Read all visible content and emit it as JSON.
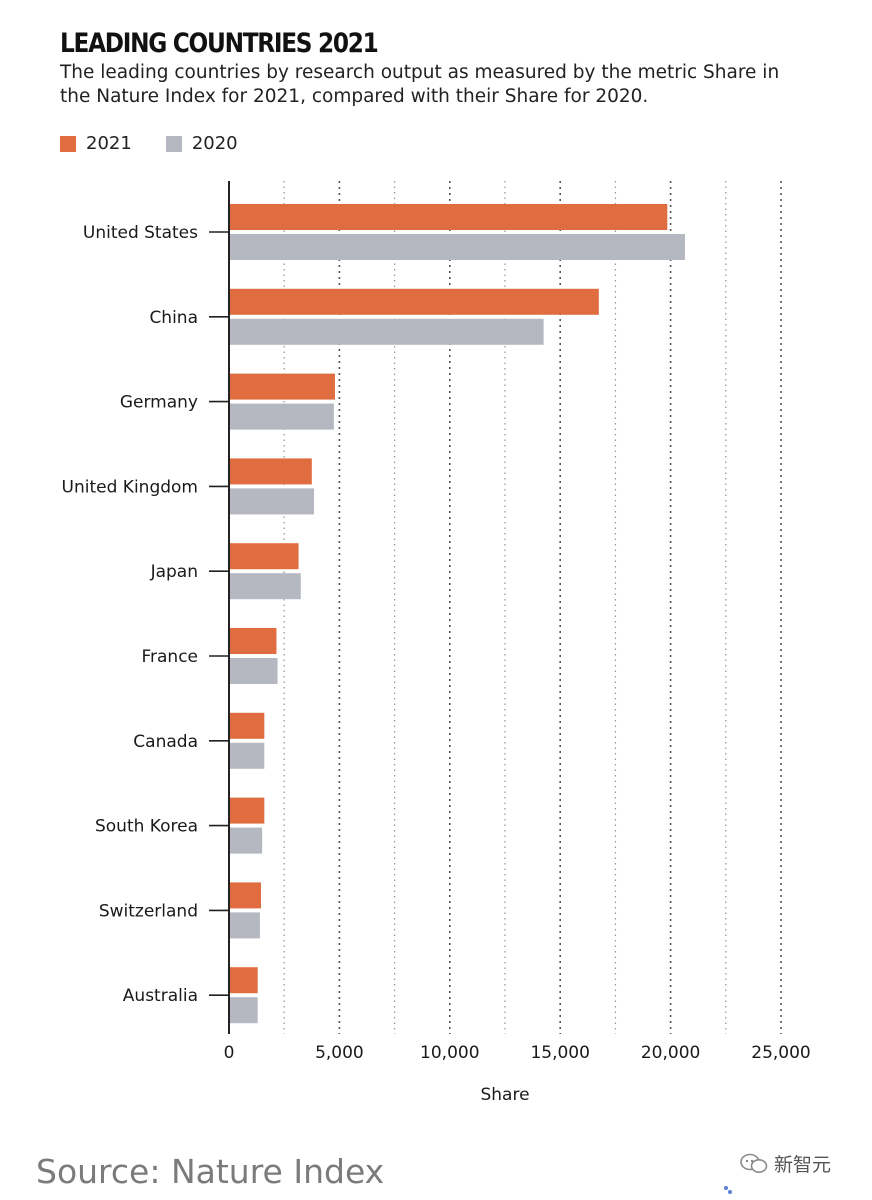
{
  "chart_data": {
    "type": "bar",
    "orientation": "horizontal",
    "title": "LEADING COUNTRIES 2021",
    "subtitle": "The leading countries by research output as measured by the metric Share in the Nature Index for 2021, compared with their Share for 2020.",
    "xlabel": "Share",
    "ylabel": "",
    "xlim": [
      0,
      25000
    ],
    "ticks": [
      {
        "value": 0,
        "label": "0"
      },
      {
        "value": 5000,
        "label": "5,000"
      },
      {
        "value": 10000,
        "label": "10,000"
      },
      {
        "value": 15000,
        "label": "15,000"
      },
      {
        "value": 20000,
        "label": "20,000"
      },
      {
        "value": 25000,
        "label": "25,000"
      }
    ],
    "categories": [
      "United States",
      "China",
      "Germany",
      "United Kingdom",
      "Japan",
      "France",
      "Canada",
      "South Korea",
      "Switzerland",
      "Australia"
    ],
    "series": [
      {
        "name": "2021",
        "color": "#e06d40",
        "values": [
          19850,
          16750,
          4800,
          3750,
          3150,
          2150,
          1600,
          1600,
          1450,
          1300
        ]
      },
      {
        "name": "2020",
        "color": "#b5b8c1",
        "values": [
          20650,
          14250,
          4750,
          3850,
          3250,
          2200,
          1600,
          1500,
          1400,
          1300
        ]
      }
    ],
    "grid": true,
    "legend_position": "top-left"
  },
  "source": "Source: Nature Index",
  "watermark": "新智元"
}
